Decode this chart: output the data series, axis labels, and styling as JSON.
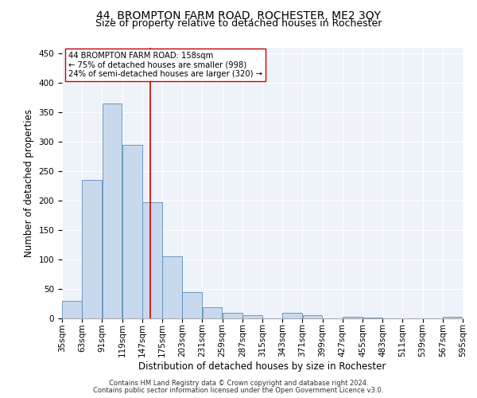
{
  "title": "44, BROMPTON FARM ROAD, ROCHESTER, ME2 3QY",
  "subtitle": "Size of property relative to detached houses in Rochester",
  "xlabel": "Distribution of detached houses by size in Rochester",
  "ylabel": "Number of detached properties",
  "bar_color": "#c9d9ed",
  "bar_edge_color": "#5b8db8",
  "property_size": 158,
  "red_line_color": "#cc0000",
  "annotation_line1": "44 BROMPTON FARM ROAD: 158sqm",
  "annotation_line2": "← 75% of detached houses are smaller (998)",
  "annotation_line3": "24% of semi-detached houses are larger (320) →",
  "annotation_box_color": "#ffffff",
  "annotation_box_edge": "#cc0000",
  "bins_left": [
    35,
    63,
    91,
    119,
    147,
    175,
    203,
    231,
    259,
    287,
    315,
    343,
    371,
    399,
    427,
    455,
    483,
    511,
    539,
    567
  ],
  "bin_width": 28,
  "counts": [
    30,
    235,
    365,
    295,
    198,
    105,
    45,
    19,
    10,
    5,
    0,
    9,
    5,
    0,
    3,
    2,
    0,
    0,
    0,
    3
  ],
  "ylim": [
    0,
    460
  ],
  "yticks": [
    0,
    50,
    100,
    150,
    200,
    250,
    300,
    350,
    400,
    450
  ],
  "xtick_labels": [
    "35sqm",
    "63sqm",
    "91sqm",
    "119sqm",
    "147sqm",
    "175sqm",
    "203sqm",
    "231sqm",
    "259sqm",
    "287sqm",
    "315sqm",
    "343sqm",
    "371sqm",
    "399sqm",
    "427sqm",
    "455sqm",
    "483sqm",
    "511sqm",
    "539sqm",
    "567sqm",
    "595sqm"
  ],
  "footnote1": "Contains HM Land Registry data © Crown copyright and database right 2024.",
  "footnote2": "Contains public sector information licensed under the Open Government Licence v3.0.",
  "background_color": "#eef2f9",
  "grid_color": "#ffffff",
  "title_fontsize": 10,
  "subtitle_fontsize": 9,
  "axis_label_fontsize": 8.5,
  "tick_fontsize": 7.5,
  "footnote_fontsize": 6.0
}
